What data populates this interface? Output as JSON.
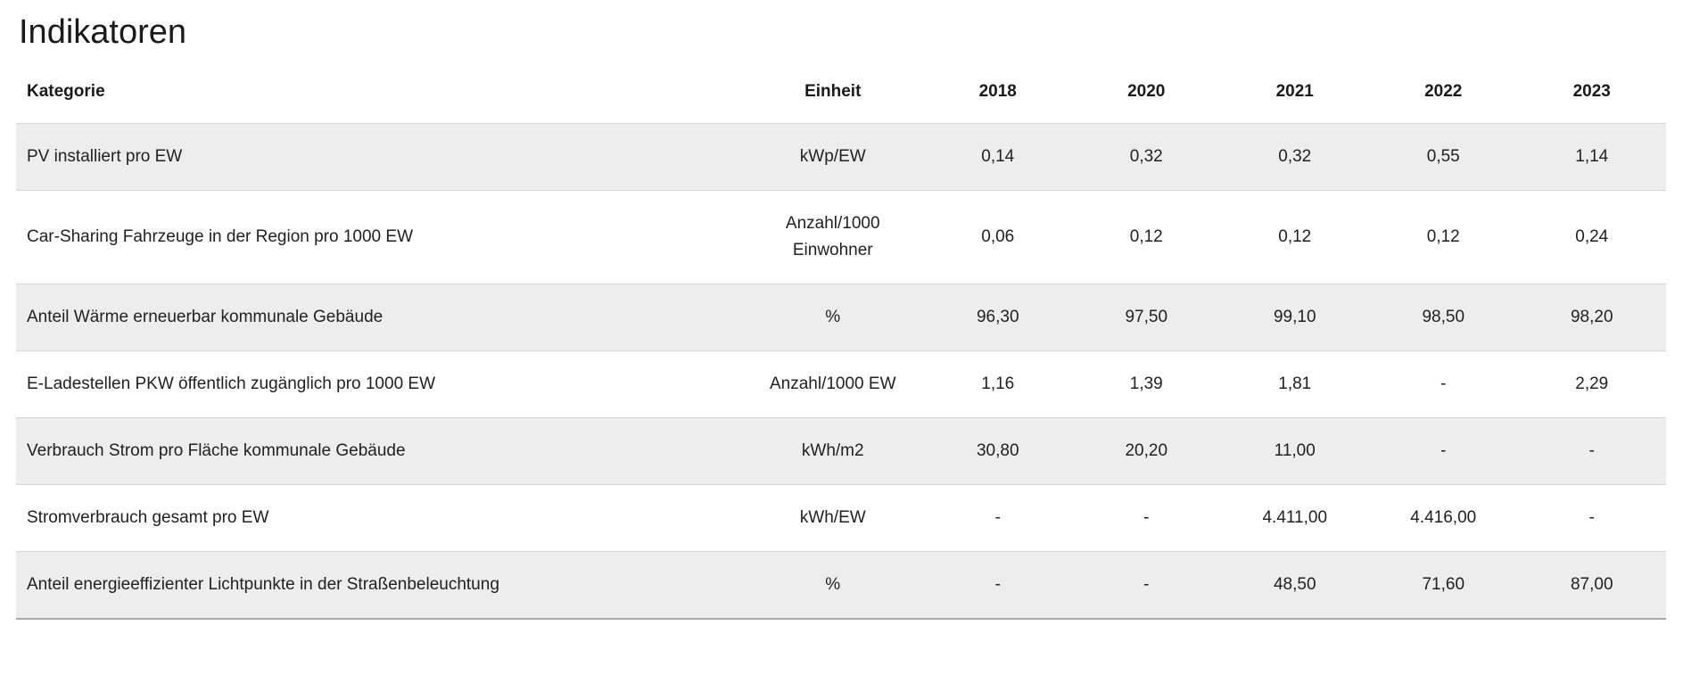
{
  "page": {
    "title": "Indikatoren"
  },
  "table": {
    "columns": {
      "kategorie": "Kategorie",
      "einheit": "Einheit",
      "year1": "2018",
      "year2": "2020",
      "year3": "2021",
      "year4": "2022",
      "year5": "2023"
    },
    "rows": [
      {
        "kategorie": "PV installiert pro EW",
        "einheit": "kWp/EW",
        "values": [
          "0,14",
          "0,32",
          "0,32",
          "0,55",
          "1,14"
        ]
      },
      {
        "kategorie": "Car-Sharing Fahrzeuge in der Region pro 1000 EW",
        "einheit": "Anzahl/1000 Einwohner",
        "values": [
          "0,06",
          "0,12",
          "0,12",
          "0,12",
          "0,24"
        ]
      },
      {
        "kategorie": "Anteil Wärme erneuerbar kommunale Gebäude",
        "einheit": "%",
        "values": [
          "96,30",
          "97,50",
          "99,10",
          "98,50",
          "98,20"
        ]
      },
      {
        "kategorie": "E-Ladestellen PKW öffentlich zugänglich pro 1000 EW",
        "einheit": "Anzahl/1000 EW",
        "values": [
          "1,16",
          "1,39",
          "1,81",
          "-",
          "2,29"
        ]
      },
      {
        "kategorie": "Verbrauch Strom pro Fläche kommunale Gebäude",
        "einheit": "kWh/m2",
        "values": [
          "30,80",
          "20,20",
          "11,00",
          "-",
          "-"
        ]
      },
      {
        "kategorie": "Stromverbrauch gesamt pro EW",
        "einheit": "kWh/EW",
        "values": [
          "-",
          "-",
          "4.411,00",
          "4.416,00",
          "-"
        ]
      },
      {
        "kategorie": "Anteil energieeffizienter Lichtpunkte in der Straßenbeleuchtung",
        "einheit": "%",
        "values": [
          "-",
          "-",
          "48,50",
          "71,60",
          "87,00"
        ]
      }
    ]
  },
  "colors": {
    "row_alt_bg": "#ededed",
    "row_border": "#d6d6d6",
    "table_bottom_border": "#a8a8a8",
    "text": "#202020"
  }
}
